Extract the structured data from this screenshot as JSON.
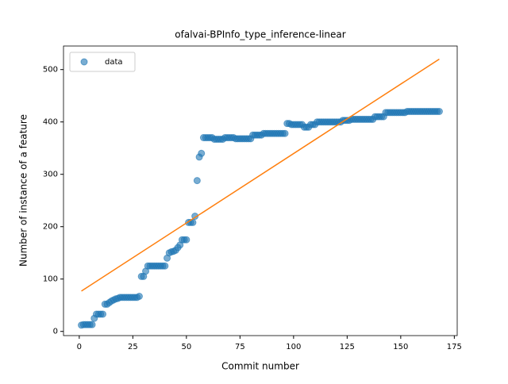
{
  "chart_data": {
    "type": "scatter",
    "title": "ofalvai-BPInfo_type_inference-linear",
    "xlabel": "Commit number",
    "ylabel": "Number of instance of a feature",
    "x": [
      1,
      2,
      3,
      4,
      5,
      6,
      7,
      8,
      9,
      10,
      11,
      12,
      13,
      14,
      15,
      16,
      17,
      18,
      19,
      20,
      21,
      22,
      23,
      24,
      25,
      26,
      27,
      28,
      29,
      30,
      31,
      32,
      33,
      34,
      35,
      36,
      37,
      38,
      39,
      40,
      41,
      42,
      43,
      44,
      45,
      46,
      47,
      48,
      49,
      50,
      51,
      52,
      53,
      54,
      55,
      56,
      57,
      58,
      59,
      60,
      61,
      62,
      63,
      64,
      65,
      66,
      67,
      68,
      69,
      70,
      71,
      72,
      73,
      74,
      75,
      76,
      77,
      78,
      79,
      80,
      81,
      82,
      83,
      84,
      85,
      86,
      87,
      88,
      89,
      90,
      91,
      92,
      93,
      94,
      95,
      96,
      97,
      98,
      99,
      100,
      101,
      102,
      103,
      104,
      105,
      106,
      107,
      108,
      109,
      110,
      111,
      112,
      113,
      114,
      115,
      116,
      117,
      118,
      119,
      120,
      121,
      122,
      123,
      124,
      125,
      126,
      127,
      128,
      129,
      130,
      131,
      132,
      133,
      134,
      135,
      136,
      137,
      138,
      139,
      140,
      141,
      142,
      143,
      144,
      145,
      146,
      147,
      148,
      149,
      150,
      151,
      152,
      153,
      154,
      155,
      156,
      157,
      158,
      159,
      160,
      161,
      162,
      163,
      164,
      165,
      166,
      167,
      168
    ],
    "series": [
      {
        "name": "data",
        "color": "#1f77b4",
        "values": [
          12,
          13,
          13,
          13,
          13,
          13,
          25,
          33,
          33,
          33,
          33,
          52,
          52,
          55,
          58,
          60,
          62,
          63,
          65,
          65,
          65,
          65,
          65,
          65,
          65,
          65,
          65,
          67,
          105,
          105,
          115,
          125,
          125,
          125,
          125,
          125,
          125,
          125,
          125,
          125,
          140,
          150,
          152,
          153,
          155,
          160,
          165,
          175,
          175,
          175,
          208,
          208,
          208,
          220,
          288,
          333,
          340,
          370,
          370,
          370,
          370,
          370,
          367,
          367,
          367,
          367,
          367,
          370,
          370,
          370,
          370,
          370,
          368,
          368,
          368,
          368,
          368,
          368,
          368,
          368,
          375,
          375,
          375,
          375,
          375,
          378,
          378,
          378,
          378,
          378,
          378,
          378,
          378,
          378,
          378,
          378,
          397,
          397,
          395,
          395,
          395,
          395,
          395,
          395,
          390,
          390,
          390,
          395,
          395,
          395,
          400,
          400,
          400,
          400,
          400,
          400,
          400,
          400,
          400,
          400,
          400,
          400,
          403,
          403,
          403,
          403,
          405,
          405,
          405,
          405,
          405,
          405,
          405,
          405,
          405,
          405,
          405,
          410,
          410,
          410,
          410,
          410,
          418,
          418,
          418,
          418,
          418,
          418,
          418,
          418,
          418,
          418,
          420,
          420,
          420,
          420,
          420,
          420,
          420,
          420,
          420,
          420,
          420,
          420,
          420,
          420,
          420,
          420
        ]
      },
      {
        "color": "#ff7f0e",
        "x": [
          1,
          168
        ],
        "values": [
          77,
          520
        ]
      }
    ],
    "xlim": [
      -7.35,
      176.35
    ],
    "xticks": [
      0,
      25,
      50,
      75,
      100,
      125,
      150,
      175
    ],
    "ylim": [
      -8,
      545
    ],
    "yticks": [
      0,
      100,
      200,
      300,
      400,
      500
    ],
    "legend": "upper left"
  }
}
